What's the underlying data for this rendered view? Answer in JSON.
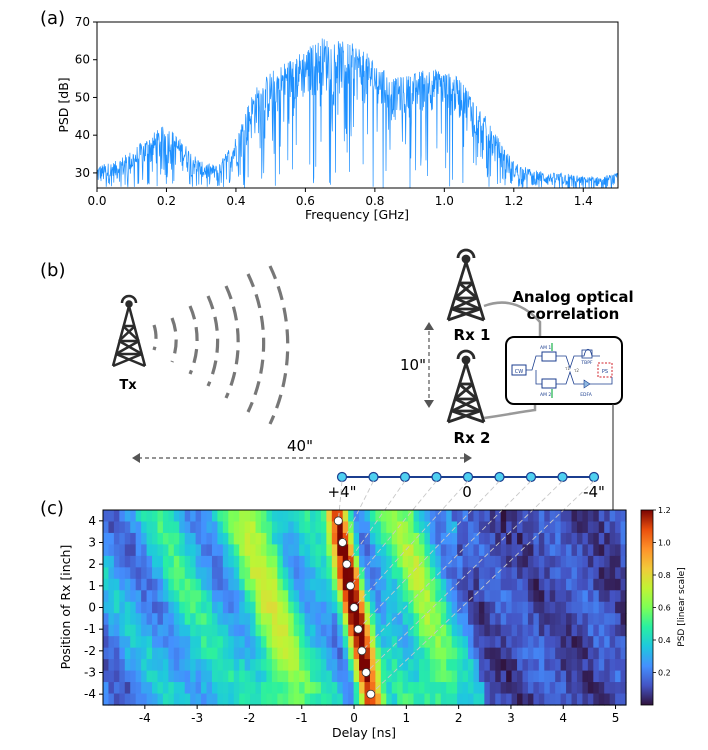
{
  "panel_a": {
    "label": "(a)",
    "chart_data": {
      "type": "line",
      "xlabel": "Frequency [GHz]",
      "ylabel": "PSD [dB]",
      "xlim": [
        0.0,
        1.5
      ],
      "ylim": [
        26,
        70
      ],
      "xticks": [
        "0.0",
        "0.2",
        "0.4",
        "0.6",
        "0.8",
        "1.0",
        "1.2",
        "1.4"
      ],
      "yticks": [
        "30",
        "40",
        "50",
        "60",
        "70"
      ],
      "series_color": "#1e90ff",
      "envelope": {
        "x": [
          0.0,
          0.05,
          0.1,
          0.15,
          0.2,
          0.25,
          0.3,
          0.35,
          0.4,
          0.45,
          0.5,
          0.55,
          0.6,
          0.65,
          0.7,
          0.75,
          0.8,
          0.85,
          0.9,
          0.95,
          1.0,
          1.05,
          1.1,
          1.15,
          1.2,
          1.25,
          1.3,
          1.35,
          1.4,
          1.45,
          1.5
        ],
        "upper": [
          32,
          33,
          36,
          40,
          43,
          38,
          33,
          32,
          40,
          52,
          57,
          60,
          63,
          66,
          65,
          64,
          60,
          55,
          56,
          58,
          57,
          55,
          48,
          40,
          33,
          31,
          30,
          30,
          29,
          29,
          30
        ],
        "lower": [
          26,
          27,
          28,
          30,
          32,
          30,
          27,
          27,
          30,
          38,
          42,
          46,
          48,
          50,
          49,
          48,
          46,
          43,
          44,
          46,
          45,
          43,
          36,
          31,
          27,
          27,
          26,
          26,
          26,
          26,
          26
        ]
      }
    }
  },
  "panel_b": {
    "label": "(b)",
    "tx_label": "Tx",
    "rx1_label": "Rx 1",
    "rx2_label": "Rx 2",
    "title_line1": "Analog optical",
    "title_line2": "correlation",
    "distance_vertical": "10\"",
    "distance_horizontal": "40\"",
    "positions_left": "+4\"",
    "positions_center": "0",
    "positions_right": "-4\"",
    "inset": {
      "cw": "CW",
      "am1": "AM 1",
      "am2": "AM 2",
      "tbpf": "TBPF",
      "ps": "PS",
      "edfa": "EDFA",
      "tau1": "τ1",
      "tau2": "τ2"
    }
  },
  "panel_c": {
    "label": "(c)",
    "chart_data": {
      "type": "heatmap",
      "xlabel": "Delay [ns]",
      "ylabel": "Position of Rx [inch]",
      "xlim": [
        -4.8,
        5.2
      ],
      "ylim": [
        -4.5,
        4.5
      ],
      "xticks": [
        "-4",
        "-3",
        "-2",
        "-1",
        "0",
        "1",
        "2",
        "3",
        "4",
        "5"
      ],
      "yticks": [
        "4",
        "3",
        "2",
        "1",
        "0",
        "-1",
        "-2",
        "-3",
        "-4"
      ],
      "colorbar_label": "PSD [linear scale]",
      "colorbar_ticks": [
        "0.2",
        "0.4",
        "0.6",
        "0.8",
        "1.0",
        "1.2"
      ],
      "colorbar_range": [
        0.0,
        1.2
      ],
      "colormap": "turbo",
      "peaks": {
        "position": [
          4,
          3,
          2,
          1,
          0,
          -1,
          -2,
          -3,
          -4
        ],
        "delay": [
          -0.3,
          -0.22,
          -0.14,
          -0.07,
          0.0,
          0.08,
          0.15,
          0.23,
          0.32
        ]
      }
    }
  }
}
